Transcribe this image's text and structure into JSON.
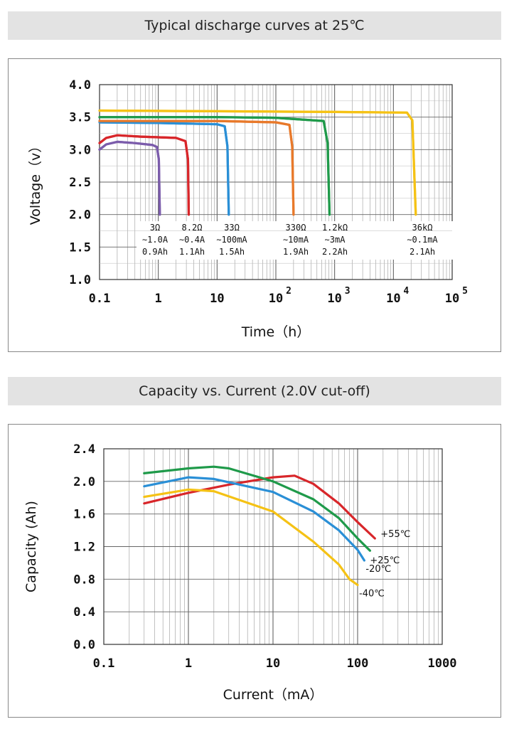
{
  "chart_data": [
    {
      "type": "line",
      "title": "Typical discharge curves at 25℃",
      "xlabel": "Time（h）",
      "ylabel": "Voltage（v）",
      "xscale": "log",
      "xlim": [
        0.1,
        100000
      ],
      "ylim": [
        1.0,
        4.0
      ],
      "yticks": [
        1.0,
        1.5,
        2.0,
        2.5,
        3.0,
        3.5,
        4.0
      ],
      "ytick_labels": [
        "1.0",
        "1.5",
        "2.0",
        "2.5",
        "3.0",
        "3.5",
        "4.0"
      ],
      "xticks": [
        {
          "v": 0.1,
          "base": "0.1",
          "exp": ""
        },
        {
          "v": 1,
          "base": "1",
          "exp": ""
        },
        {
          "v": 10,
          "base": "10",
          "exp": ""
        },
        {
          "v": 100,
          "base": "10",
          "exp": "2"
        },
        {
          "v": 1000,
          "base": "10",
          "exp": "3"
        },
        {
          "v": 10000,
          "base": "10",
          "exp": "4"
        },
        {
          "v": 100000,
          "base": "10",
          "exp": "5"
        }
      ],
      "grid": true,
      "series": [
        {
          "name": "3Ω",
          "color": "#7b5cab",
          "x": [
            0.1,
            0.13,
            0.2,
            0.4,
            0.8,
            0.95,
            1.02,
            1.06
          ],
          "y": [
            3.0,
            3.08,
            3.12,
            3.1,
            3.07,
            3.04,
            2.85,
            2.0
          ],
          "annotation": [
            "3Ω",
            "∼1.0A",
            "0.9Ah"
          ]
        },
        {
          "name": "8.2Ω",
          "color": "#d8262a",
          "x": [
            0.1,
            0.13,
            0.2,
            0.5,
            2.0,
            2.9,
            3.2,
            3.3
          ],
          "y": [
            3.1,
            3.18,
            3.22,
            3.2,
            3.18,
            3.13,
            2.85,
            2.0
          ],
          "annotation": [
            "8.2Ω",
            "∼0.4A",
            "1.1Ah"
          ]
        },
        {
          "name": "33Ω",
          "color": "#2a8fd6",
          "x": [
            0.1,
            1.0,
            10,
            13.5,
            15,
            15.8
          ],
          "y": [
            3.42,
            3.41,
            3.39,
            3.36,
            3.05,
            2.0
          ],
          "annotation": [
            "33Ω",
            "∼100mA",
            "1.5Ah"
          ]
        },
        {
          "name": "330Ω",
          "color": "#e8792a",
          "x": [
            0.1,
            10,
            100,
            170,
            190,
            200
          ],
          "y": [
            3.44,
            3.44,
            3.42,
            3.38,
            3.05,
            2.0
          ],
          "annotation": [
            "330Ω",
            "∼10mA",
            "1.9Ah"
          ]
        },
        {
          "name": "1.2kΩ",
          "color": "#1f9a4a",
          "x": [
            0.1,
            10,
            100,
            650,
            760,
            820
          ],
          "y": [
            3.5,
            3.5,
            3.49,
            3.44,
            3.1,
            2.0
          ],
          "annotation": [
            "1.2kΩ",
            "∼3mA",
            "2.2Ah"
          ]
        },
        {
          "name": "36kΩ",
          "color": "#f5c215",
          "x": [
            0.1,
            10,
            1000,
            17000,
            21000,
            24000
          ],
          "y": [
            3.6,
            3.59,
            3.58,
            3.57,
            3.45,
            2.0
          ],
          "annotation": [
            "36kΩ",
            "∼0.1mA",
            "2.1Ah"
          ]
        }
      ]
    },
    {
      "type": "line",
      "title": "Capacity vs. Current (2.0V cut-off)",
      "xlabel": "Current（mA）",
      "ylabel": "Capacity (Ah)",
      "xscale": "log",
      "xlim": [
        0.1,
        1000
      ],
      "ylim": [
        0.0,
        2.4
      ],
      "yticks": [
        0.0,
        0.4,
        0.8,
        1.2,
        1.6,
        2.0,
        2.4
      ],
      "ytick_labels": [
        "0.0",
        "0.4",
        "0.8",
        "1.2",
        "1.6",
        "2.0",
        "2.4"
      ],
      "xticks": [
        {
          "v": 0.1,
          "base": "0.1",
          "exp": ""
        },
        {
          "v": 1,
          "base": "1",
          "exp": ""
        },
        {
          "v": 10,
          "base": "10",
          "exp": ""
        },
        {
          "v": 100,
          "base": "100",
          "exp": ""
        },
        {
          "v": 1000,
          "base": "1000",
          "exp": ""
        }
      ],
      "grid": true,
      "series": [
        {
          "name": "+55℃",
          "color": "#d8262a",
          "x": [
            0.3,
            1,
            3,
            10,
            18,
            30,
            60,
            100,
            160
          ],
          "y": [
            1.73,
            1.86,
            1.96,
            2.05,
            2.07,
            1.97,
            1.73,
            1.5,
            1.3
          ]
        },
        {
          "name": "+25℃",
          "color": "#1f9a4a",
          "x": [
            0.3,
            1,
            2,
            3,
            10,
            30,
            60,
            100,
            140
          ],
          "y": [
            2.1,
            2.16,
            2.18,
            2.16,
            2.0,
            1.78,
            1.55,
            1.3,
            1.15
          ]
        },
        {
          "name": "-20℃",
          "color": "#2a8fd6",
          "x": [
            0.3,
            1,
            2,
            10,
            30,
            60,
            100,
            120
          ],
          "y": [
            1.94,
            2.05,
            2.03,
            1.87,
            1.63,
            1.4,
            1.16,
            1.03
          ]
        },
        {
          "name": "-40℃",
          "color": "#f5c215",
          "x": [
            0.3,
            1,
            2,
            10,
            30,
            60,
            80,
            100
          ],
          "y": [
            1.81,
            1.9,
            1.88,
            1.63,
            1.26,
            0.98,
            0.8,
            0.73
          ]
        }
      ]
    }
  ]
}
